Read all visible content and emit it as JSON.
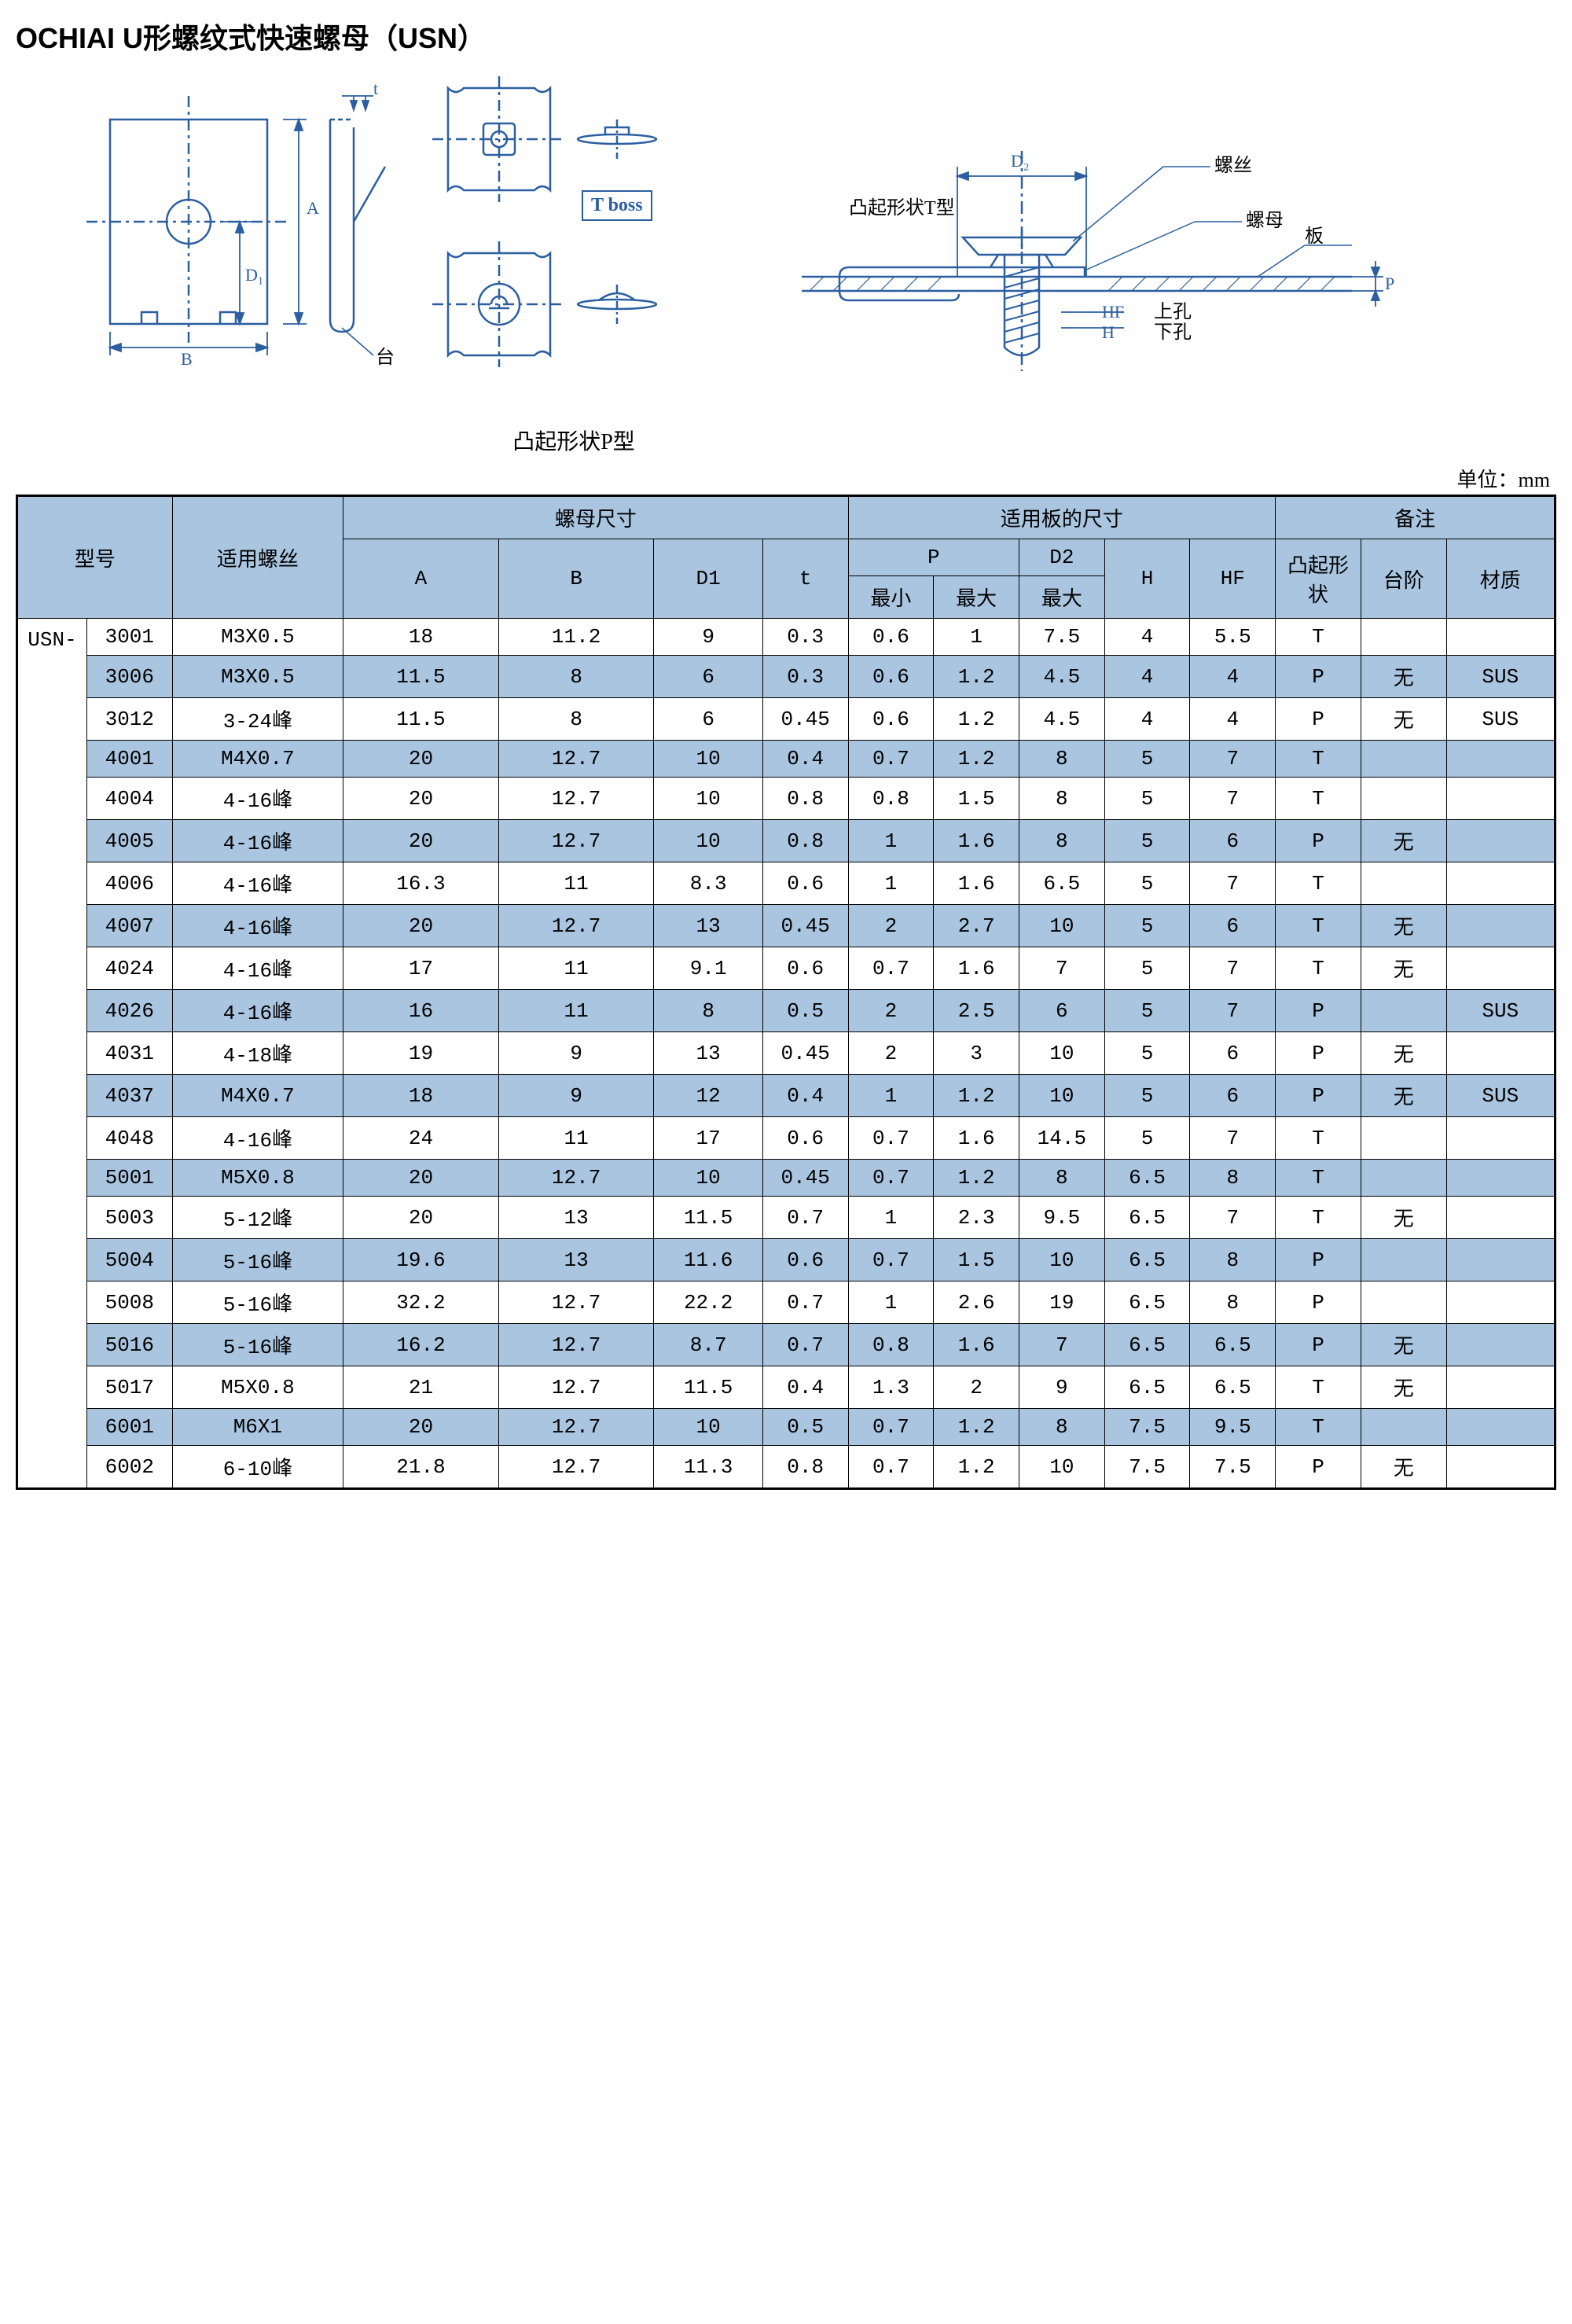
{
  "title": "OCHIAI U形螺纹式快速螺母（USN）",
  "unit_label": "单位：mm",
  "diagram_labels": {
    "tboss": "T boss",
    "p_shape": "凸起形状P型",
    "t_shape": "凸起形状T型",
    "step": "台阶",
    "screw": "螺丝",
    "nut": "螺母",
    "plate": "板",
    "upper_hole": "上孔",
    "lower_hole": "下孔"
  },
  "dim_labels": {
    "A": "A",
    "B": "B",
    "D1": "D₁",
    "D2": "D₂",
    "t": "t",
    "H": "H",
    "HF": "HF",
    "P": "P"
  },
  "table": {
    "prefix": "USN-",
    "header": {
      "model": "型号",
      "screw": "适用螺丝",
      "nut_dim": "螺母尺寸",
      "plate_dim": "适用板的尺寸",
      "remark": "备注",
      "A": "A",
      "B": "B",
      "D1": "D1",
      "t": "t",
      "P": "P",
      "D2": "D2",
      "H": "H",
      "HF": "HF",
      "min": "最小",
      "max": "最大",
      "boss": "凸起形状",
      "step": "台阶",
      "material": "材质"
    },
    "col_widths_pct": [
      4.5,
      5.5,
      11,
      10,
      10,
      7,
      5.5,
      5.5,
      5.5,
      5.5,
      5.5,
      5.5,
      5.5,
      5.5,
      7
    ],
    "colors": {
      "header_bg": "#a9c5e0",
      "row_alt_bg": "#a9c5e0",
      "border": "#000000",
      "text": "#000000",
      "diagram_stroke": "#2b5fa0"
    },
    "rows": [
      {
        "code": "3001",
        "screw": "M3X0.5",
        "A": "18",
        "B": "11.2",
        "D1": "9",
        "t": "0.3",
        "Pmin": "0.6",
        "Pmax": "1",
        "D2max": "7.5",
        "H": "4",
        "HF": "5.5",
        "boss": "T",
        "step": "",
        "mat": ""
      },
      {
        "code": "3006",
        "screw": "M3X0.5",
        "A": "11.5",
        "B": "8",
        "D1": "6",
        "t": "0.3",
        "Pmin": "0.6",
        "Pmax": "1.2",
        "D2max": "4.5",
        "H": "4",
        "HF": "4",
        "boss": "P",
        "step": "无",
        "mat": "SUS"
      },
      {
        "code": "3012",
        "screw": "3-24峰",
        "A": "11.5",
        "B": "8",
        "D1": "6",
        "t": "0.45",
        "Pmin": "0.6",
        "Pmax": "1.2",
        "D2max": "4.5",
        "H": "4",
        "HF": "4",
        "boss": "P",
        "step": "无",
        "mat": "SUS"
      },
      {
        "code": "4001",
        "screw": "M4X0.7",
        "A": "20",
        "B": "12.7",
        "D1": "10",
        "t": "0.4",
        "Pmin": "0.7",
        "Pmax": "1.2",
        "D2max": "8",
        "H": "5",
        "HF": "7",
        "boss": "T",
        "step": "",
        "mat": ""
      },
      {
        "code": "4004",
        "screw": "4-16峰",
        "A": "20",
        "B": "12.7",
        "D1": "10",
        "t": "0.8",
        "Pmin": "0.8",
        "Pmax": "1.5",
        "D2max": "8",
        "H": "5",
        "HF": "7",
        "boss": "T",
        "step": "",
        "mat": ""
      },
      {
        "code": "4005",
        "screw": "4-16峰",
        "A": "20",
        "B": "12.7",
        "D1": "10",
        "t": "0.8",
        "Pmin": "1",
        "Pmax": "1.6",
        "D2max": "8",
        "H": "5",
        "HF": "6",
        "boss": "P",
        "step": "无",
        "mat": ""
      },
      {
        "code": "4006",
        "screw": "4-16峰",
        "A": "16.3",
        "B": "11",
        "D1": "8.3",
        "t": "0.6",
        "Pmin": "1",
        "Pmax": "1.6",
        "D2max": "6.5",
        "H": "5",
        "HF": "7",
        "boss": "T",
        "step": "",
        "mat": ""
      },
      {
        "code": "4007",
        "screw": "4-16峰",
        "A": "20",
        "B": "12.7",
        "D1": "13",
        "t": "0.45",
        "Pmin": "2",
        "Pmax": "2.7",
        "D2max": "10",
        "H": "5",
        "HF": "6",
        "boss": "T",
        "step": "无",
        "mat": ""
      },
      {
        "code": "4024",
        "screw": "4-16峰",
        "A": "17",
        "B": "11",
        "D1": "9.1",
        "t": "0.6",
        "Pmin": "0.7",
        "Pmax": "1.6",
        "D2max": "7",
        "H": "5",
        "HF": "7",
        "boss": "T",
        "step": "无",
        "mat": ""
      },
      {
        "code": "4026",
        "screw": "4-16峰",
        "A": "16",
        "B": "11",
        "D1": "8",
        "t": "0.5",
        "Pmin": "2",
        "Pmax": "2.5",
        "D2max": "6",
        "H": "5",
        "HF": "7",
        "boss": "P",
        "step": "",
        "mat": "SUS"
      },
      {
        "code": "4031",
        "screw": "4-18峰",
        "A": "19",
        "B": "9",
        "D1": "13",
        "t": "0.45",
        "Pmin": "2",
        "Pmax": "3",
        "D2max": "10",
        "H": "5",
        "HF": "6",
        "boss": "P",
        "step": "无",
        "mat": ""
      },
      {
        "code": "4037",
        "screw": "M4X0.7",
        "A": "18",
        "B": "9",
        "D1": "12",
        "t": "0.4",
        "Pmin": "1",
        "Pmax": "1.2",
        "D2max": "10",
        "H": "5",
        "HF": "6",
        "boss": "P",
        "step": "无",
        "mat": "SUS"
      },
      {
        "code": "4048",
        "screw": "4-16峰",
        "A": "24",
        "B": "11",
        "D1": "17",
        "t": "0.6",
        "Pmin": "0.7",
        "Pmax": "1.6",
        "D2max": "14.5",
        "H": "5",
        "HF": "7",
        "boss": "T",
        "step": "",
        "mat": ""
      },
      {
        "code": "5001",
        "screw": "M5X0.8",
        "A": "20",
        "B": "12.7",
        "D1": "10",
        "t": "0.45",
        "Pmin": "0.7",
        "Pmax": "1.2",
        "D2max": "8",
        "H": "6.5",
        "HF": "8",
        "boss": "T",
        "step": "",
        "mat": ""
      },
      {
        "code": "5003",
        "screw": "5-12峰",
        "A": "20",
        "B": "13",
        "D1": "11.5",
        "t": "0.7",
        "Pmin": "1",
        "Pmax": "2.3",
        "D2max": "9.5",
        "H": "6.5",
        "HF": "7",
        "boss": "T",
        "step": "无",
        "mat": ""
      },
      {
        "code": "5004",
        "screw": "5-16峰",
        "A": "19.6",
        "B": "13",
        "D1": "11.6",
        "t": "0.6",
        "Pmin": "0.7",
        "Pmax": "1.5",
        "D2max": "10",
        "H": "6.5",
        "HF": "8",
        "boss": "P",
        "step": "",
        "mat": ""
      },
      {
        "code": "5008",
        "screw": "5-16峰",
        "A": "32.2",
        "B": "12.7",
        "D1": "22.2",
        "t": "0.7",
        "Pmin": "1",
        "Pmax": "2.6",
        "D2max": "19",
        "H": "6.5",
        "HF": "8",
        "boss": "P",
        "step": "",
        "mat": ""
      },
      {
        "code": "5016",
        "screw": "5-16峰",
        "A": "16.2",
        "B": "12.7",
        "D1": "8.7",
        "t": "0.7",
        "Pmin": "0.8",
        "Pmax": "1.6",
        "D2max": "7",
        "H": "6.5",
        "HF": "6.5",
        "boss": "P",
        "step": "无",
        "mat": ""
      },
      {
        "code": "5017",
        "screw": "M5X0.8",
        "A": "21",
        "B": "12.7",
        "D1": "11.5",
        "t": "0.4",
        "Pmin": "1.3",
        "Pmax": "2",
        "D2max": "9",
        "H": "6.5",
        "HF": "6.5",
        "boss": "T",
        "step": "无",
        "mat": ""
      },
      {
        "code": "6001",
        "screw": "M6X1",
        "A": "20",
        "B": "12.7",
        "D1": "10",
        "t": "0.5",
        "Pmin": "0.7",
        "Pmax": "1.2",
        "D2max": "8",
        "H": "7.5",
        "HF": "9.5",
        "boss": "T",
        "step": "",
        "mat": ""
      },
      {
        "code": "6002",
        "screw": "6-10峰",
        "A": "21.8",
        "B": "12.7",
        "D1": "11.3",
        "t": "0.8",
        "Pmin": "0.7",
        "Pmax": "1.2",
        "D2max": "10",
        "H": "7.5",
        "HF": "7.5",
        "boss": "P",
        "step": "无",
        "mat": ""
      }
    ]
  }
}
